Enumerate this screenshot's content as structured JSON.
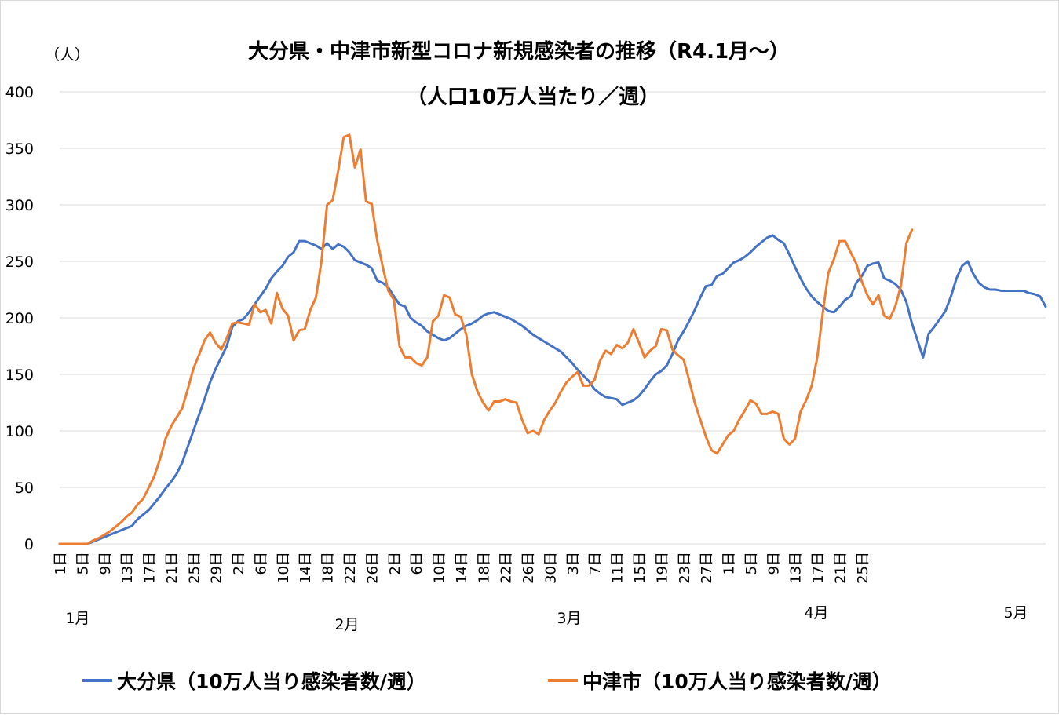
{
  "chart_data": {
    "type": "line",
    "title": "大分県・中津市新型コロナ新規感染者の推移（R4.1月～）",
    "subtitle": "（人口10万人当たり／週）",
    "ylabel": "（人）",
    "ylim": [
      0,
      400
    ],
    "yticks": [
      0,
      50,
      100,
      150,
      200,
      250,
      300,
      350,
      400
    ],
    "grid": true,
    "legend_position": "bottom",
    "x_tick_labels": [
      "1日",
      "5日",
      "9日",
      "13日",
      "17日",
      "21日",
      "25日",
      "29日",
      "2日",
      "6日",
      "10日",
      "14日",
      "18日",
      "22日",
      "26日",
      "2日",
      "6日",
      "10日",
      "14日",
      "18日",
      "22日",
      "26日",
      "30日",
      "3日",
      "7日",
      "11日",
      "15日",
      "19日",
      "23日",
      "27日",
      "1日",
      "5日",
      "9日",
      "13日",
      "17日",
      "21日",
      "25日"
    ],
    "month_labels": [
      {
        "label": "1月",
        "index": 1
      },
      {
        "label": "2月",
        "index": 38
      },
      {
        "label": "3月",
        "index": 68
      },
      {
        "label": "4月",
        "index": 96
      },
      {
        "label": "5月",
        "index": 128
      }
    ],
    "series": [
      {
        "name": "大分県（10万人当り感染者数/週）",
        "color": "#4472c4",
        "values": [
          0,
          0,
          0,
          0,
          0,
          0,
          2,
          4,
          6,
          8,
          10,
          12,
          14,
          16,
          22,
          26,
          30,
          36,
          42,
          49,
          55,
          62,
          72,
          86,
          100,
          114,
          128,
          143,
          155,
          165,
          175,
          192,
          197,
          199,
          205,
          212,
          219,
          226,
          235,
          241,
          246,
          254,
          258,
          268,
          268,
          266,
          264,
          261,
          266,
          261,
          265,
          263,
          258,
          251,
          249,
          247,
          244,
          233,
          231,
          227,
          219,
          212,
          210,
          200,
          196,
          193,
          188,
          185,
          182,
          180,
          182,
          186,
          190,
          193,
          195,
          198,
          202,
          204,
          205,
          203,
          201,
          199,
          196,
          193,
          189,
          185,
          182,
          179,
          176,
          173,
          170,
          165,
          160,
          154,
          149,
          144,
          137,
          133,
          130,
          129,
          128,
          123,
          125,
          127,
          131,
          137,
          144,
          150,
          153,
          158,
          168,
          180,
          188,
          197,
          207,
          218,
          228,
          229,
          237,
          239,
          244,
          249,
          251,
          254,
          258,
          263,
          267,
          271,
          273,
          269,
          266,
          256,
          245,
          235,
          226,
          219,
          214,
          210,
          206,
          205,
          210,
          216,
          219,
          231,
          237,
          246,
          248,
          249,
          235,
          233,
          230,
          225,
          214,
          195,
          180,
          165,
          186,
          192,
          199,
          206,
          219,
          235,
          246,
          250,
          239,
          231,
          227,
          225,
          225,
          224,
          224,
          224,
          224,
          224,
          222,
          221,
          219,
          210
        ]
      },
      {
        "name": "中津市（10万人当り感染者数/週）",
        "color": "#ed7d31",
        "values": [
          0,
          0,
          0,
          0,
          0,
          0,
          3,
          5,
          8,
          11,
          15,
          19,
          24,
          28,
          35,
          40,
          50,
          60,
          75,
          93,
          104,
          112,
          120,
          137,
          155,
          167,
          180,
          187,
          178,
          172,
          182,
          195,
          196,
          195,
          194,
          212,
          205,
          207,
          195,
          222,
          208,
          202,
          180,
          189,
          190,
          207,
          218,
          250,
          300,
          304,
          330,
          360,
          362,
          333,
          349,
          303,
          301,
          269,
          245,
          224,
          216,
          175,
          165,
          165,
          160,
          158,
          165,
          197,
          202,
          220,
          218,
          203,
          201,
          185,
          150,
          135,
          125,
          118,
          126,
          126,
          128,
          126,
          125,
          110,
          98,
          100,
          97,
          110,
          118,
          125,
          135,
          143,
          148,
          152,
          140,
          140,
          145,
          162,
          171,
          168,
          176,
          173,
          178,
          190,
          178,
          165,
          171,
          175,
          190,
          189,
          172,
          167,
          163,
          145,
          125,
          110,
          95,
          83,
          80,
          88,
          96,
          100,
          110,
          118,
          127,
          124,
          115,
          115,
          117,
          115,
          93,
          88,
          93,
          117,
          127,
          140,
          165,
          205,
          240,
          252,
          268,
          268,
          258,
          248,
          232,
          220,
          212,
          220,
          202,
          199,
          210,
          228,
          266,
          278
        ]
      }
    ]
  }
}
